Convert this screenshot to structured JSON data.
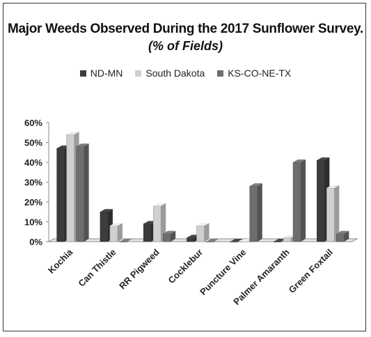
{
  "chart_data": {
    "type": "bar",
    "title": "Major Weeds Observed During the 2017 Sunflower Survey.",
    "subtitle": "(% of Fields)",
    "categories": [
      "Kochia",
      "Can Thistle",
      "RR Pigweed",
      "Cocklebur",
      "Puncture Vine",
      "Palmer Amaranth",
      "Green Foxtail"
    ],
    "series": [
      {
        "name": "ND-MN",
        "color": "#3c3c3c",
        "values": [
          47,
          15,
          9,
          2,
          0,
          0,
          41
        ]
      },
      {
        "name": "South Dakota",
        "color": "#cfcfcf",
        "values": [
          54,
          8,
          18,
          8,
          0,
          2,
          27
        ]
      },
      {
        "name": "KS-CO-NE-TX",
        "color": "#6e6e6e",
        "values": [
          48,
          0,
          4,
          0,
          28,
          40,
          4
        ]
      }
    ],
    "ylim": [
      0,
      60
    ],
    "yticks": [
      "0%",
      "10%",
      "20%",
      "30%",
      "40%",
      "50%",
      "60%"
    ],
    "legend_position": "top-center",
    "grid": false,
    "style": "3d-columns"
  }
}
